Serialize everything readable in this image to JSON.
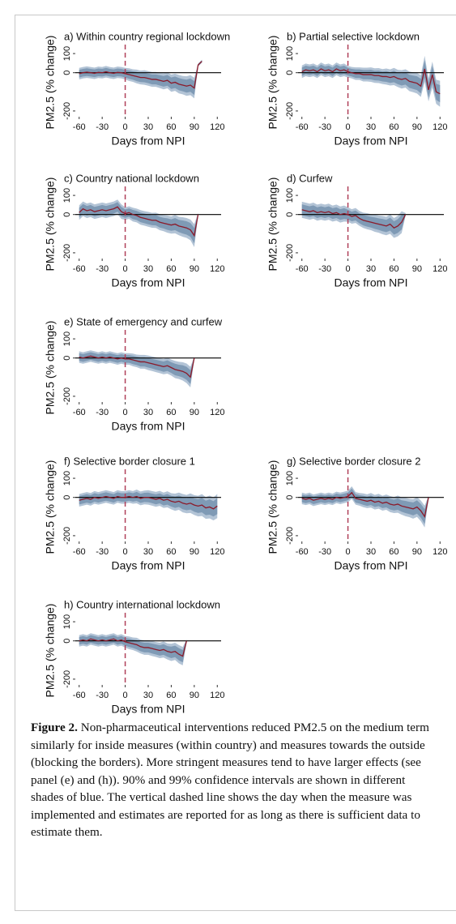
{
  "chart_data": [
    {
      "type": "line",
      "title": "a) Within country regional lockdown",
      "xlabel": "Days from NPI",
      "ylabel": "PM2.5 (% change)",
      "xlim": [
        -65,
        125
      ],
      "xticks": [
        -60,
        -30,
        0,
        30,
        60,
        90,
        120
      ],
      "ylim": [
        -230,
        130
      ],
      "yticks": [
        -200,
        0,
        100
      ],
      "vline": 0,
      "hline": 0,
      "color": "#8b1a2a",
      "ci90_color": "#7f9ab5",
      "ci99_color": "#b3c4d6",
      "x": [
        -60,
        -55,
        -50,
        -45,
        -40,
        -35,
        -30,
        -25,
        -20,
        -15,
        -10,
        -5,
        0,
        5,
        10,
        15,
        20,
        25,
        30,
        35,
        40,
        45,
        50,
        55,
        60,
        65,
        70,
        75,
        80,
        85,
        90,
        95,
        100
      ],
      "values": [
        -5,
        0,
        3,
        0,
        -3,
        2,
        0,
        5,
        0,
        -3,
        2,
        0,
        -5,
        -10,
        -15,
        -20,
        -25,
        -25,
        -30,
        -35,
        -35,
        -40,
        -45,
        -40,
        -55,
        -50,
        -60,
        -65,
        -70,
        -65,
        -80,
        40,
        60
      ],
      "ci90": [
        20,
        20,
        20,
        20,
        20,
        20,
        20,
        20,
        20,
        20,
        20,
        20,
        20,
        22,
        22,
        24,
        24,
        25,
        25,
        26,
        26,
        27,
        28,
        28,
        30,
        30,
        32,
        32,
        34,
        35,
        36,
        5,
        5
      ],
      "ci99": [
        30,
        30,
        30,
        30,
        30,
        30,
        30,
        30,
        30,
        30,
        30,
        30,
        30,
        33,
        33,
        36,
        36,
        38,
        38,
        39,
        39,
        40,
        42,
        42,
        45,
        45,
        48,
        48,
        51,
        52,
        54,
        8,
        8
      ]
    },
    {
      "type": "line",
      "title": "b) Partial selective lockdown",
      "xlabel": "Days from NPI",
      "ylabel": "PM2.5 (% change)",
      "xlim": [
        -65,
        125
      ],
      "xticks": [
        -60,
        -30,
        0,
        30,
        60,
        90,
        120
      ],
      "ylim": [
        -230,
        130
      ],
      "yticks": [
        -200,
        0,
        100
      ],
      "vline": 0,
      "hline": 0,
      "color": "#8b1a2a",
      "ci90_color": "#7f9ab5",
      "ci99_color": "#b3c4d6",
      "x": [
        -60,
        -55,
        -50,
        -45,
        -40,
        -35,
        -30,
        -25,
        -20,
        -15,
        -10,
        -5,
        0,
        5,
        10,
        15,
        20,
        25,
        30,
        35,
        40,
        45,
        50,
        55,
        60,
        65,
        70,
        75,
        80,
        85,
        90,
        95,
        100,
        105,
        110,
        115,
        120
      ],
      "values": [
        5,
        15,
        10,
        15,
        5,
        20,
        10,
        15,
        5,
        20,
        10,
        15,
        5,
        0,
        -5,
        -5,
        -10,
        -10,
        -10,
        -15,
        -15,
        -20,
        -20,
        -25,
        -20,
        -30,
        -35,
        -30,
        -45,
        -50,
        -55,
        -70,
        20,
        -90,
        -10,
        -100,
        -110
      ],
      "ci90": [
        22,
        22,
        22,
        22,
        22,
        22,
        22,
        22,
        22,
        22,
        22,
        22,
        20,
        20,
        22,
        22,
        24,
        24,
        25,
        25,
        26,
        26,
        28,
        28,
        30,
        30,
        32,
        32,
        34,
        35,
        36,
        38,
        45,
        40,
        45,
        42,
        45
      ],
      "ci99": [
        33,
        33,
        33,
        33,
        33,
        33,
        33,
        33,
        33,
        33,
        33,
        33,
        30,
        30,
        33,
        33,
        36,
        36,
        38,
        38,
        39,
        39,
        42,
        42,
        45,
        45,
        48,
        48,
        51,
        52,
        54,
        57,
        68,
        60,
        68,
        63,
        68
      ]
    },
    {
      "type": "line",
      "title": "c) Country national lockdown",
      "xlabel": "Days from NPI",
      "ylabel": "PM2.5 (% change)",
      "xlim": [
        -65,
        125
      ],
      "xticks": [
        -60,
        -30,
        0,
        30,
        60,
        90,
        120
      ],
      "ylim": [
        -230,
        130
      ],
      "yticks": [
        -200,
        0,
        100
      ],
      "vline": 0,
      "hline": 0,
      "color": "#8b1a2a",
      "ci90_color": "#7f9ab5",
      "ci99_color": "#b3c4d6",
      "x": [
        -60,
        -55,
        -50,
        -45,
        -40,
        -35,
        -30,
        -25,
        -20,
        -15,
        -10,
        -5,
        0,
        5,
        10,
        15,
        20,
        25,
        30,
        35,
        40,
        45,
        50,
        55,
        60,
        65,
        70,
        75,
        80,
        85,
        90,
        95
      ],
      "values": [
        10,
        30,
        20,
        25,
        15,
        20,
        25,
        20,
        25,
        30,
        40,
        15,
        5,
        10,
        0,
        -5,
        -15,
        -20,
        -25,
        -30,
        -30,
        -40,
        -45,
        -50,
        -55,
        -50,
        -60,
        -65,
        -70,
        -80,
        -110,
        0
      ],
      "ci90": [
        25,
        25,
        25,
        25,
        25,
        25,
        25,
        25,
        25,
        25,
        25,
        25,
        22,
        22,
        24,
        24,
        25,
        25,
        26,
        26,
        27,
        28,
        28,
        30,
        30,
        32,
        32,
        34,
        35,
        36,
        40,
        5
      ],
      "ci99": [
        38,
        38,
        38,
        38,
        38,
        38,
        38,
        38,
        38,
        38,
        38,
        38,
        33,
        33,
        36,
        36,
        38,
        38,
        39,
        39,
        40,
        42,
        42,
        45,
        45,
        48,
        48,
        51,
        52,
        54,
        60,
        8
      ]
    },
    {
      "type": "line",
      "title": "d) Curfew",
      "xlabel": "Days from NPI",
      "ylabel": "PM2.5 (% change)",
      "xlim": [
        -65,
        125
      ],
      "xticks": [
        -60,
        -30,
        0,
        30,
        60,
        90,
        120
      ],
      "ylim": [
        -230,
        130
      ],
      "yticks": [
        -200,
        0,
        100
      ],
      "vline": 0,
      "hline": 0,
      "color": "#8b1a2a",
      "ci90_color": "#7f9ab5",
      "ci99_color": "#b3c4d6",
      "x": [
        -60,
        -55,
        -50,
        -45,
        -40,
        -35,
        -30,
        -25,
        -20,
        -15,
        -10,
        -5,
        0,
        5,
        10,
        15,
        20,
        25,
        30,
        35,
        40,
        45,
        50,
        55,
        60,
        65,
        70,
        75
      ],
      "values": [
        25,
        20,
        15,
        20,
        10,
        15,
        10,
        15,
        5,
        10,
        0,
        5,
        0,
        -10,
        -5,
        -20,
        -30,
        -35,
        -40,
        -45,
        -50,
        -55,
        -60,
        -50,
        -70,
        -60,
        -40,
        0
      ],
      "ci90": [
        28,
        28,
        28,
        28,
        28,
        28,
        28,
        28,
        28,
        28,
        28,
        28,
        25,
        25,
        26,
        26,
        27,
        28,
        28,
        30,
        30,
        32,
        32,
        34,
        35,
        36,
        38,
        5
      ],
      "ci99": [
        42,
        42,
        42,
        42,
        42,
        42,
        42,
        42,
        42,
        42,
        42,
        42,
        38,
        38,
        39,
        39,
        40,
        42,
        42,
        45,
        45,
        48,
        48,
        51,
        52,
        54,
        57,
        8
      ]
    },
    {
      "type": "line",
      "title": "e) State of emergency and curfew",
      "xlabel": "Days from NPI",
      "ylabel": "PM2.5 (% change)",
      "xlim": [
        -65,
        125
      ],
      "xticks": [
        -60,
        -30,
        0,
        30,
        60,
        90,
        120
      ],
      "ylim": [
        -230,
        130
      ],
      "yticks": [
        -200,
        0,
        100
      ],
      "vline": 0,
      "hline": 0,
      "color": "#8b1a2a",
      "ci90_color": "#7f9ab5",
      "ci99_color": "#b3c4d6",
      "x": [
        -60,
        -55,
        -50,
        -45,
        -40,
        -35,
        -30,
        -25,
        -20,
        -15,
        -10,
        -5,
        0,
        5,
        10,
        15,
        20,
        25,
        30,
        35,
        40,
        45,
        50,
        55,
        60,
        65,
        70,
        75,
        80,
        85,
        90
      ],
      "values": [
        5,
        0,
        5,
        10,
        5,
        0,
        5,
        0,
        5,
        0,
        -5,
        0,
        -5,
        -5,
        -10,
        -15,
        -20,
        -20,
        -25,
        -30,
        -35,
        -40,
        -45,
        -40,
        -50,
        -60,
        -65,
        -70,
        -80,
        -100,
        0
      ],
      "ci90": [
        20,
        20,
        20,
        20,
        20,
        20,
        20,
        20,
        20,
        20,
        20,
        20,
        20,
        20,
        22,
        22,
        24,
        24,
        25,
        25,
        26,
        26,
        27,
        28,
        28,
        30,
        30,
        32,
        34,
        36,
        5
      ],
      "ci99": [
        30,
        30,
        30,
        30,
        30,
        30,
        30,
        30,
        30,
        30,
        30,
        30,
        30,
        30,
        33,
        33,
        36,
        36,
        38,
        38,
        39,
        39,
        40,
        42,
        42,
        45,
        45,
        48,
        51,
        54,
        8
      ]
    },
    {
      "type": "line",
      "title": "f) Selective border closure 1",
      "xlabel": "Days from NPI",
      "ylabel": "PM2.5 (% change)",
      "xlim": [
        -65,
        125
      ],
      "xticks": [
        -60,
        -30,
        0,
        30,
        60,
        90,
        120
      ],
      "ylim": [
        -230,
        130
      ],
      "yticks": [
        -200,
        0,
        100
      ],
      "vline": 0,
      "hline": 0,
      "color": "#8b1a2a",
      "ci90_color": "#7f9ab5",
      "ci99_color": "#b3c4d6",
      "x": [
        -60,
        -55,
        -50,
        -45,
        -40,
        -35,
        -30,
        -25,
        -20,
        -15,
        -10,
        -5,
        0,
        5,
        10,
        15,
        20,
        25,
        30,
        35,
        40,
        45,
        50,
        55,
        60,
        65,
        70,
        75,
        80,
        85,
        90,
        95,
        100,
        105,
        110,
        115,
        120
      ],
      "values": [
        -15,
        -10,
        -5,
        -10,
        0,
        -5,
        0,
        5,
        0,
        -5,
        5,
        0,
        0,
        5,
        0,
        5,
        -5,
        0,
        0,
        -5,
        -10,
        -5,
        -15,
        -10,
        -20,
        -25,
        -20,
        -30,
        -35,
        -30,
        -40,
        -45,
        -40,
        -55,
        -50,
        -60,
        -45
      ],
      "ci90": [
        22,
        22,
        22,
        22,
        22,
        22,
        22,
        22,
        22,
        22,
        22,
        22,
        22,
        22,
        22,
        24,
        24,
        24,
        25,
        25,
        26,
        26,
        27,
        28,
        28,
        30,
        30,
        32,
        32,
        34,
        35,
        36,
        38,
        38,
        40,
        40,
        42
      ],
      "ci99": [
        33,
        33,
        33,
        33,
        33,
        33,
        33,
        33,
        33,
        33,
        33,
        33,
        33,
        33,
        33,
        36,
        36,
        36,
        38,
        38,
        39,
        39,
        40,
        42,
        42,
        45,
        45,
        48,
        48,
        51,
        52,
        54,
        57,
        57,
        60,
        60,
        63
      ]
    },
    {
      "type": "line",
      "title": "g) Selective border closure 2",
      "xlabel": "Days from NPI",
      "ylabel": "PM2.5 (% change)",
      "xlim": [
        -65,
        125
      ],
      "xticks": [
        -60,
        -30,
        0,
        30,
        60,
        90,
        120
      ],
      "ylim": [
        -230,
        130
      ],
      "yticks": [
        -200,
        0,
        100
      ],
      "vline": 0,
      "hline": 0,
      "color": "#8b1a2a",
      "ci90_color": "#7f9ab5",
      "ci99_color": "#b3c4d6",
      "x": [
        -60,
        -55,
        -50,
        -45,
        -40,
        -35,
        -30,
        -25,
        -20,
        -15,
        -10,
        -5,
        0,
        5,
        10,
        15,
        20,
        25,
        30,
        35,
        40,
        45,
        50,
        55,
        60,
        65,
        70,
        75,
        80,
        85,
        90,
        95,
        100,
        105
      ],
      "values": [
        -5,
        -10,
        -5,
        -15,
        -10,
        -5,
        -10,
        -5,
        -10,
        0,
        -5,
        0,
        5,
        25,
        -5,
        -10,
        -15,
        -20,
        -15,
        -25,
        -20,
        -30,
        -25,
        -35,
        -40,
        -35,
        -45,
        -50,
        -55,
        -60,
        -50,
        -70,
        -100,
        0
      ],
      "ci90": [
        20,
        20,
        20,
        20,
        20,
        20,
        20,
        20,
        20,
        20,
        20,
        20,
        20,
        22,
        22,
        22,
        24,
        24,
        25,
        25,
        26,
        26,
        27,
        28,
        28,
        30,
        30,
        32,
        32,
        34,
        35,
        36,
        38,
        5
      ],
      "ci99": [
        30,
        30,
        30,
        30,
        30,
        30,
        30,
        30,
        30,
        30,
        30,
        30,
        30,
        33,
        33,
        33,
        36,
        36,
        38,
        38,
        39,
        39,
        40,
        42,
        42,
        45,
        45,
        48,
        48,
        51,
        52,
        54,
        57,
        8
      ]
    },
    {
      "type": "line",
      "title": "h) Country international lockdown",
      "xlabel": "Days from NPI",
      "ylabel": "PM2.5 (% change)",
      "xlim": [
        -65,
        125
      ],
      "xticks": [
        -60,
        -30,
        0,
        30,
        60,
        90,
        120
      ],
      "ylim": [
        -230,
        130
      ],
      "yticks": [
        -200,
        0,
        100
      ],
      "vline": 0,
      "hline": 0,
      "color": "#8b1a2a",
      "ci90_color": "#7f9ab5",
      "ci99_color": "#b3c4d6",
      "x": [
        -60,
        -55,
        -50,
        -45,
        -40,
        -35,
        -30,
        -25,
        -20,
        -15,
        -10,
        -5,
        0,
        5,
        10,
        15,
        20,
        25,
        30,
        35,
        40,
        45,
        50,
        55,
        60,
        65,
        70,
        75,
        80
      ],
      "values": [
        0,
        5,
        0,
        10,
        5,
        0,
        5,
        0,
        5,
        10,
        0,
        5,
        -5,
        -10,
        -15,
        -20,
        -30,
        -35,
        -35,
        -40,
        -45,
        -50,
        -45,
        -55,
        -60,
        -55,
        -70,
        -80,
        0
      ],
      "ci90": [
        20,
        20,
        20,
        20,
        20,
        20,
        20,
        20,
        20,
        20,
        20,
        20,
        20,
        22,
        22,
        24,
        24,
        25,
        25,
        26,
        26,
        27,
        28,
        28,
        30,
        30,
        32,
        32,
        5
      ],
      "ci99": [
        30,
        30,
        30,
        30,
        30,
        30,
        30,
        30,
        30,
        30,
        30,
        30,
        30,
        33,
        33,
        36,
        36,
        38,
        38,
        39,
        39,
        40,
        42,
        42,
        45,
        45,
        48,
        48,
        8
      ]
    }
  ],
  "caption": {
    "label": "Figure 2.",
    "text": "Non-pharmaceutical interventions reduced PM2.5 on the medium term similarly for inside measures (within country) and measures towards the outside (blocking the borders). More stringent measures tend to have larger effects (see panel (e) and (h)). 90% and 99% confidence intervals are shown in different shades of blue. The vertical dashed line shows the day when the measure was implemented and estimates are reported for as long as there is sufficient data to estimate them."
  }
}
